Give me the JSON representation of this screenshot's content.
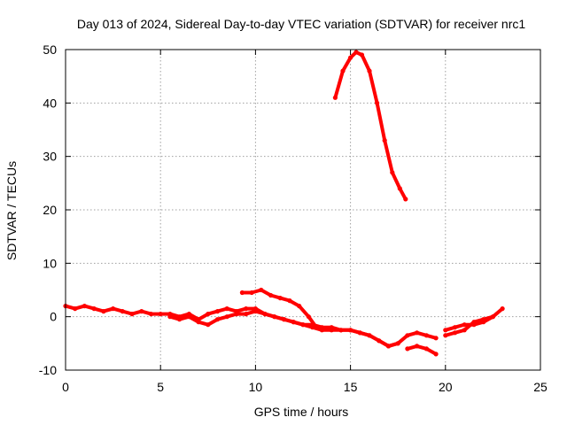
{
  "chart_data": {
    "type": "line",
    "title": "Day 013 of 2024, Sidereal Day-to-day VTEC variation (SDTVAR) for receiver nrc1",
    "xlabel": "GPS time / hours",
    "ylabel": "SDTVAR / TECUs",
    "xlim": [
      0,
      25
    ],
    "ylim": [
      -10,
      50
    ],
    "xticks": [
      0,
      5,
      10,
      15,
      20,
      25
    ],
    "yticks": [
      -10,
      0,
      10,
      20,
      30,
      40,
      50
    ],
    "grid": true,
    "series_color": "#ff0000",
    "series": [
      {
        "name": "track-low-main",
        "x": [
          0,
          0.5,
          1,
          1.5,
          2,
          2.5,
          3,
          3.5,
          4,
          4.5,
          5,
          5.5,
          6,
          6.5,
          7,
          7.5,
          8,
          8.5,
          9,
          9.5,
          10,
          10.5,
          11,
          11.5,
          12,
          12.5,
          13,
          13.5,
          14,
          14.5,
          15,
          15.5,
          16,
          16.5,
          17,
          17.5,
          18,
          18.5,
          19,
          19.5
        ],
        "y": [
          2,
          1.5,
          2,
          1.5,
          1,
          1.5,
          1,
          0.5,
          1,
          0.5,
          0.5,
          0.5,
          0,
          0.5,
          -0.5,
          0.5,
          1,
          1.5,
          1,
          1.5,
          1.5,
          0.5,
          0,
          -0.5,
          -1,
          -1.5,
          -1.5,
          -2,
          -2,
          -2.5,
          -2.5,
          -3,
          -3.5,
          -4.5,
          -5.5,
          -5,
          -3.5,
          -3,
          -3.5,
          -4
        ]
      },
      {
        "name": "track-low-lower",
        "x": [
          5.5,
          6,
          6.5,
          7,
          7.5,
          8,
          8.5,
          9,
          9.5,
          10,
          10.5,
          11,
          11.5,
          12,
          12.5,
          13,
          13.5,
          14,
          14.5,
          15,
          15.5,
          16,
          16.5,
          17,
          17.5
        ],
        "y": [
          0,
          -0.5,
          0,
          -1,
          -1.5,
          -0.5,
          0,
          0.5,
          0.5,
          1,
          0.5,
          0,
          -0.5,
          -1,
          -1.5,
          -2,
          -2.5,
          -2.5,
          -2.5,
          -2.5,
          -3,
          -3.5,
          -4.5,
          -5.5,
          -5
        ]
      },
      {
        "name": "track-mid-bump",
        "x": [
          9.3,
          9.8,
          10.3,
          10.8,
          11.3,
          11.8,
          12.3,
          12.8,
          13.2
        ],
        "y": [
          4.5,
          4.5,
          5,
          4,
          3.5,
          3,
          2,
          0,
          -2
        ]
      },
      {
        "name": "track-late-segment",
        "x": [
          18,
          18.5,
          19,
          19.5
        ],
        "y": [
          -6,
          -5.5,
          -6,
          -7
        ]
      },
      {
        "name": "track-evening",
        "x": [
          20,
          20.5,
          21,
          21.5,
          22,
          22.5,
          23
        ],
        "y": [
          -2.5,
          -2,
          -1.5,
          -1.5,
          -1,
          0,
          1.5
        ]
      },
      {
        "name": "track-evening-lower",
        "x": [
          20,
          20.5,
          21,
          21.5,
          22,
          22.5
        ],
        "y": [
          -3.5,
          -3,
          -2.5,
          -1,
          -0.5,
          0
        ]
      },
      {
        "name": "track-peak",
        "x": [
          14.2,
          14.6,
          15,
          15.3,
          15.6,
          16,
          16.4,
          16.8,
          17.2,
          17.6,
          17.9
        ],
        "y": [
          41,
          46,
          48.5,
          49.5,
          49,
          46,
          40,
          33,
          27,
          24,
          22
        ]
      }
    ]
  }
}
